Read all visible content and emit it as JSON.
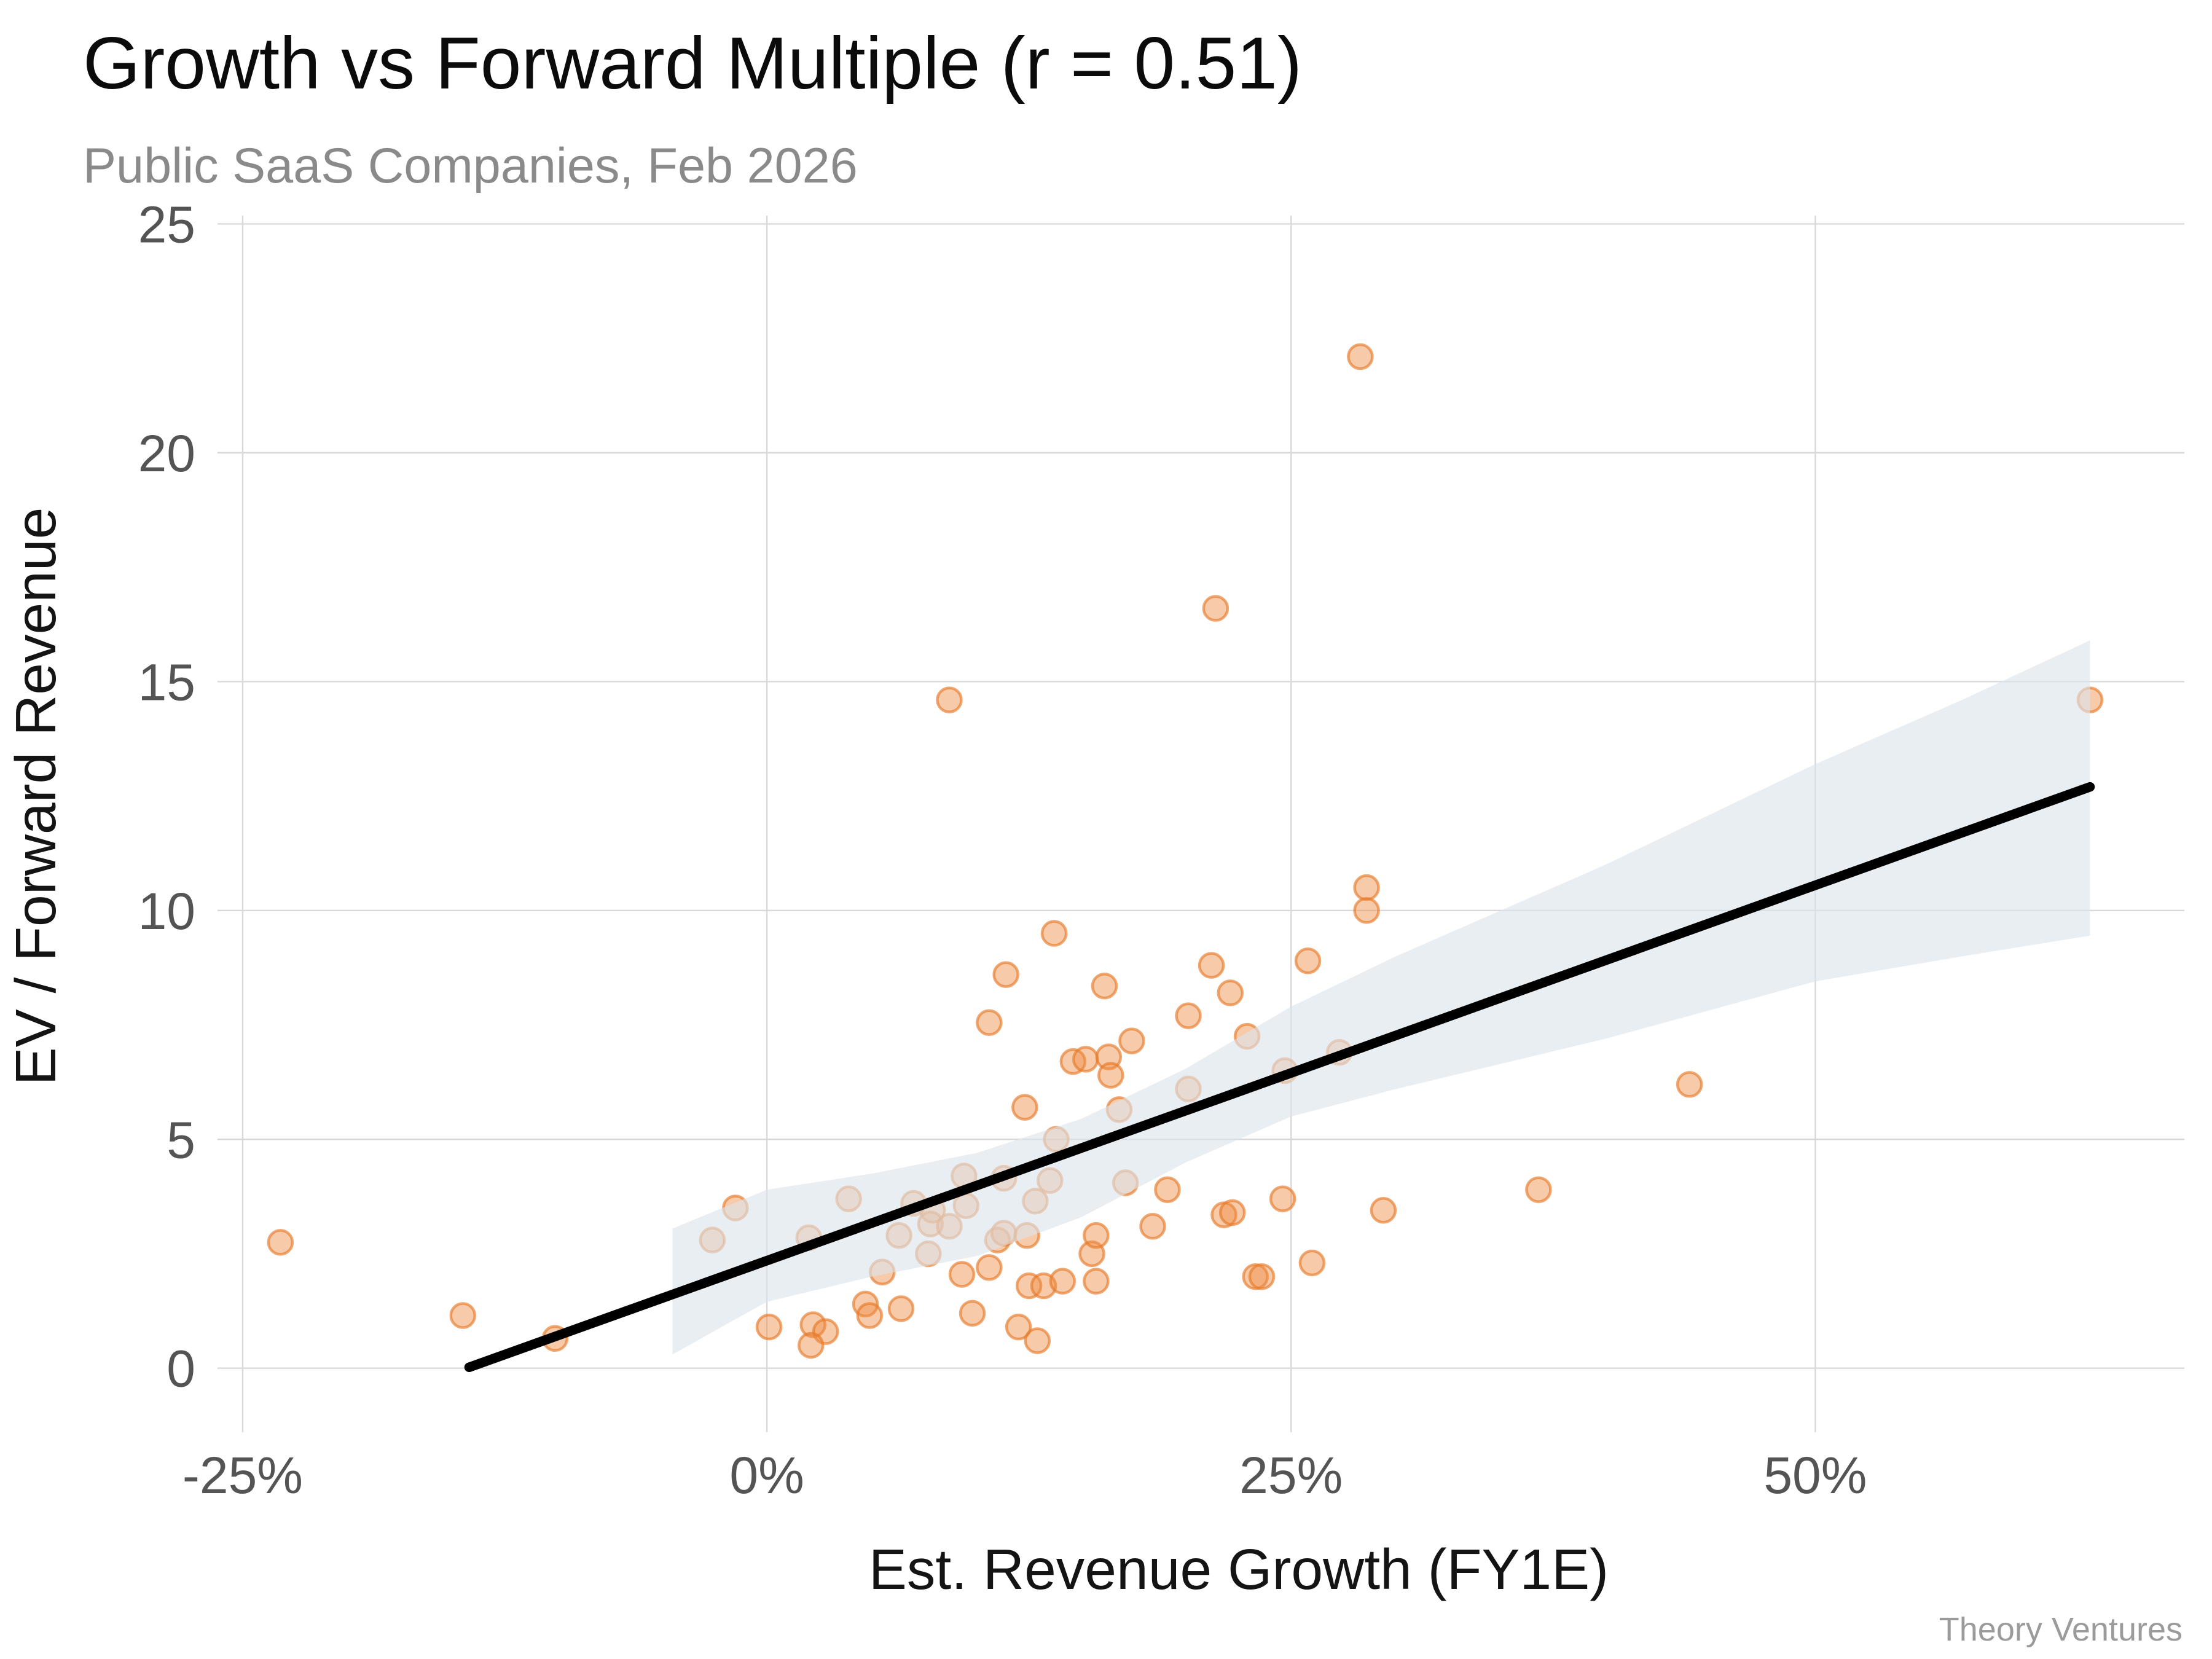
{
  "header": {
    "title": "Growth vs Forward Multiple (r = 0.51)",
    "subtitle": "Public SaaS Companies, Feb 2026",
    "attribution": "Theory Ventures"
  },
  "chart_data": {
    "type": "scatter",
    "title": "Growth vs Forward Multiple (r = 0.51)",
    "subtitle": "Public SaaS Companies, Feb 2026",
    "xlabel": "Est. Revenue Growth (FY1E)",
    "ylabel": "EV / Forward Revenue",
    "attribution": "Theory Ventures",
    "correlation_r": 0.51,
    "grid": true,
    "legend": false,
    "xlim": [
      -26.2,
      67.6
    ],
    "ylim": [
      -1.4,
      25.18
    ],
    "x_ticks": [
      -25,
      0,
      25,
      50
    ],
    "x_tick_labels": [
      "-25%",
      "0%",
      "25%",
      "50%"
    ],
    "y_ticks": [
      0,
      5,
      10,
      15,
      20,
      25
    ],
    "y_tick_labels": [
      "0",
      "5",
      "10",
      "15",
      "20",
      "25"
    ],
    "x_unit": "percent_growth",
    "y_unit": "ev_over_forward_revenue_multiple",
    "points": [
      [
        -23.2,
        2.75
      ],
      [
        -14.5,
        1.15
      ],
      [
        -10.1,
        0.65
      ],
      [
        -2.6,
        2.8
      ],
      [
        -1.5,
        3.5
      ],
      [
        0.1,
        0.9
      ],
      [
        2.0,
        2.85
      ],
      [
        2.2,
        0.95
      ],
      [
        2.8,
        0.8
      ],
      [
        2.1,
        0.5
      ],
      [
        3.9,
        3.7
      ],
      [
        4.7,
        1.4
      ],
      [
        4.9,
        1.15
      ],
      [
        5.5,
        2.1
      ],
      [
        6.3,
        2.9
      ],
      [
        6.4,
        1.3
      ],
      [
        7.0,
        3.6
      ],
      [
        7.7,
        2.5
      ],
      [
        7.9,
        3.45
      ],
      [
        7.8,
        3.15
      ],
      [
        8.7,
        3.1
      ],
      [
        8.7,
        14.6
      ],
      [
        9.3,
        2.05
      ],
      [
        9.4,
        4.2
      ],
      [
        9.5,
        3.55
      ],
      [
        9.8,
        1.2
      ],
      [
        10.6,
        2.2
      ],
      [
        10.6,
        7.55
      ],
      [
        11.0,
        2.8
      ],
      [
        11.3,
        4.15
      ],
      [
        11.3,
        2.95
      ],
      [
        11.4,
        8.6
      ],
      [
        12.0,
        0.9
      ],
      [
        12.3,
        5.7
      ],
      [
        12.4,
        2.9
      ],
      [
        12.5,
        1.8
      ],
      [
        12.8,
        3.65
      ],
      [
        12.9,
        0.6
      ],
      [
        13.2,
        1.8
      ],
      [
        13.5,
        4.1
      ],
      [
        13.7,
        9.5
      ],
      [
        13.8,
        5.0
      ],
      [
        14.1,
        1.9
      ],
      [
        14.6,
        6.7
      ],
      [
        15.2,
        6.75
      ],
      [
        15.5,
        2.5
      ],
      [
        15.7,
        2.9
      ],
      [
        15.7,
        1.9
      ],
      [
        16.1,
        8.35
      ],
      [
        16.3,
        6.8
      ],
      [
        16.4,
        6.4
      ],
      [
        16.8,
        5.65
      ],
      [
        17.1,
        4.05
      ],
      [
        17.4,
        7.15
      ],
      [
        18.4,
        3.1
      ],
      [
        19.1,
        3.9
      ],
      [
        20.1,
        7.7
      ],
      [
        20.1,
        6.1
      ],
      [
        21.2,
        8.8
      ],
      [
        21.4,
        16.6
      ],
      [
        21.8,
        3.35
      ],
      [
        22.1,
        8.2
      ],
      [
        22.2,
        3.4
      ],
      [
        22.9,
        7.25
      ],
      [
        23.3,
        2.0
      ],
      [
        23.6,
        2.0
      ],
      [
        24.6,
        3.7
      ],
      [
        24.7,
        6.5
      ],
      [
        25.8,
        8.9
      ],
      [
        26.0,
        2.3
      ],
      [
        27.3,
        6.9
      ],
      [
        28.3,
        22.1
      ],
      [
        28.6,
        10.5
      ],
      [
        28.6,
        10.0
      ],
      [
        29.4,
        3.45
      ],
      [
        36.8,
        3.9
      ],
      [
        44.0,
        6.2
      ],
      [
        63.1,
        14.6
      ]
    ],
    "trend_line": {
      "x1": -14.2,
      "y1": 0.02,
      "x2": 63.1,
      "y2": 12.7
    },
    "confidence_band": {
      "upper": [
        [
          -4.5,
          3.05
        ],
        [
          0,
          3.9
        ],
        [
          5,
          4.25
        ],
        [
          10,
          4.7
        ],
        [
          15,
          5.45
        ],
        [
          20,
          6.55
        ],
        [
          25,
          7.9
        ],
        [
          30,
          9.0
        ],
        [
          40,
          11.0
        ],
        [
          50,
          13.2
        ],
        [
          57,
          14.6
        ],
        [
          63.1,
          15.9
        ]
      ],
      "lower": [
        [
          -4.5,
          0.3
        ],
        [
          0,
          1.45
        ],
        [
          5,
          2.0
        ],
        [
          10,
          2.45
        ],
        [
          15,
          3.3
        ],
        [
          20,
          4.5
        ],
        [
          25,
          5.5
        ],
        [
          30,
          6.1
        ],
        [
          40,
          7.2
        ],
        [
          50,
          8.45
        ],
        [
          57,
          9.0
        ],
        [
          63.1,
          9.45
        ]
      ]
    },
    "colors": {
      "point_fill": "rgba(238,140,66,0.45)",
      "point_stroke": "rgba(230,122,40,0.65)",
      "band_fill": "rgba(219,227,236,0.62)",
      "trend_line": "#000000",
      "gridline": "#d9d9dc",
      "title": "#0b0b0b",
      "subtitle": "#8a8a8a",
      "tick_label": "#545454",
      "attribution": "#9b9b9b"
    }
  }
}
